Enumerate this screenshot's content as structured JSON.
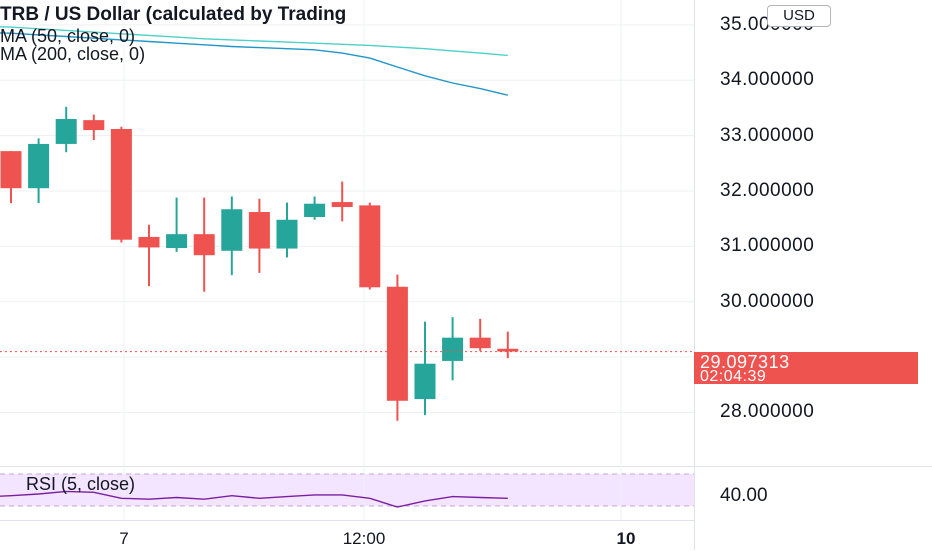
{
  "chart_title": "TRB / US Dollar (calculated by Trading",
  "currency": "USD",
  "indicators": {
    "ma50_label": "MA (50, close, 0)",
    "ma200_label": "MA (200, close, 0)",
    "rsi_label": "RSI (5, close)"
  },
  "last_price": {
    "value": "29.097313",
    "countdown": "02:04:39"
  },
  "colors": {
    "up": "#26a69a",
    "down": "#ef5350",
    "ma50": "#4dd0c9",
    "ma200": "#2196c8",
    "rsi_line": "#7b1fa2",
    "rsi_band": "#f3e5ff",
    "grid": "#eef0f3"
  },
  "chart_data": {
    "type": "candlestick",
    "y_range": [
      27.05,
      35.45
    ],
    "y_ticks": [
      "35.000000",
      "34.000000",
      "33.000000",
      "32.000000",
      "31.000000",
      "30.000000",
      "28.000000"
    ],
    "x_ticks": [
      "7",
      "12:00",
      "10"
    ],
    "ohlc": [
      {
        "o": 32.72,
        "h": 32.72,
        "l": 31.78,
        "c": 32.05
      },
      {
        "o": 32.05,
        "h": 32.95,
        "l": 31.78,
        "c": 32.85
      },
      {
        "o": 32.85,
        "h": 33.52,
        "l": 32.7,
        "c": 33.3
      },
      {
        "o": 33.28,
        "h": 33.38,
        "l": 32.92,
        "c": 33.1
      },
      {
        "o": 33.12,
        "h": 33.16,
        "l": 31.07,
        "c": 31.12
      },
      {
        "o": 31.17,
        "h": 31.39,
        "l": 30.28,
        "c": 30.98
      },
      {
        "o": 30.97,
        "h": 31.88,
        "l": 30.9,
        "c": 31.22
      },
      {
        "o": 31.22,
        "h": 31.88,
        "l": 30.18,
        "c": 30.84
      },
      {
        "o": 30.92,
        "h": 31.9,
        "l": 30.48,
        "c": 31.67
      },
      {
        "o": 31.62,
        "h": 31.86,
        "l": 30.52,
        "c": 30.96
      },
      {
        "o": 30.96,
        "h": 31.79,
        "l": 30.8,
        "c": 31.48
      },
      {
        "o": 31.53,
        "h": 31.9,
        "l": 31.48,
        "c": 31.77
      },
      {
        "o": 31.8,
        "h": 32.17,
        "l": 31.45,
        "c": 31.71
      },
      {
        "o": 31.74,
        "h": 31.79,
        "l": 30.22,
        "c": 30.26
      },
      {
        "o": 30.27,
        "h": 30.49,
        "l": 27.85,
        "c": 28.21
      },
      {
        "o": 28.24,
        "h": 29.64,
        "l": 27.95,
        "c": 28.88
      },
      {
        "o": 28.93,
        "h": 29.72,
        "l": 28.58,
        "c": 29.35
      },
      {
        "o": 29.35,
        "h": 29.69,
        "l": 29.11,
        "c": 29.16
      },
      {
        "o": 29.15,
        "h": 29.46,
        "l": 28.98,
        "c": 29.1
      }
    ],
    "ma50": [
      34.96,
      34.93,
      34.9,
      34.87,
      34.84,
      34.81,
      34.78,
      34.75,
      34.73,
      34.71,
      34.69,
      34.67,
      34.65,
      34.63,
      34.6,
      34.57,
      34.53,
      34.49,
      34.45
    ],
    "ma200": [
      34.85,
      34.82,
      34.79,
      34.76,
      34.73,
      34.7,
      34.67,
      34.64,
      34.61,
      34.59,
      34.57,
      34.55,
      34.49,
      34.4,
      34.24,
      34.08,
      33.95,
      33.85,
      33.73
    ],
    "rsi": [
      38,
      40,
      43,
      42,
      35,
      34,
      36,
      34,
      38,
      35,
      37,
      39,
      39,
      35,
      25,
      32,
      37,
      36,
      35
    ],
    "rsi_range": [
      10,
      70
    ],
    "rsi_tick": "40.00"
  }
}
